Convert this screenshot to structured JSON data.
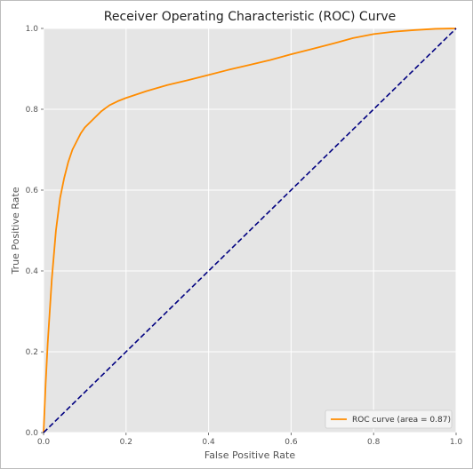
{
  "chart_data": {
    "type": "line",
    "title": "Receiver Operating Characteristic (ROC) Curve",
    "xlabel": "False Positive Rate",
    "ylabel": "True Positive Rate",
    "xlim": [
      0.0,
      1.0
    ],
    "ylim": [
      0.0,
      1.0
    ],
    "x_ticks": [
      "0.0",
      "0.2",
      "0.4",
      "0.6",
      "0.8",
      "1.0"
    ],
    "y_ticks": [
      "0.0",
      "0.2",
      "0.4",
      "0.6",
      "0.8",
      "1.0"
    ],
    "grid": true,
    "legend_position": "lower-right",
    "series": [
      {
        "name": "ROC curve (area = 0.87)",
        "color": "#ff8c00",
        "style": "solid",
        "x": [
          0.0,
          0.005,
          0.01,
          0.02,
          0.03,
          0.04,
          0.05,
          0.06,
          0.07,
          0.08,
          0.09,
          0.1,
          0.12,
          0.14,
          0.16,
          0.18,
          0.2,
          0.25,
          0.3,
          0.35,
          0.4,
          0.45,
          0.5,
          0.55,
          0.6,
          0.65,
          0.7,
          0.75,
          0.8,
          0.85,
          0.9,
          0.95,
          1.0
        ],
        "y": [
          0.0,
          0.12,
          0.22,
          0.38,
          0.5,
          0.58,
          0.63,
          0.67,
          0.7,
          0.72,
          0.74,
          0.755,
          0.775,
          0.795,
          0.81,
          0.82,
          0.828,
          0.845,
          0.86,
          0.872,
          0.885,
          0.898,
          0.91,
          0.922,
          0.936,
          0.949,
          0.962,
          0.976,
          0.986,
          0.992,
          0.996,
          0.999,
          1.0
        ]
      },
      {
        "name": "",
        "color": "#000080",
        "style": "dashed",
        "x": [
          0.0,
          1.0
        ],
        "y": [
          0.0,
          1.0
        ]
      }
    ]
  }
}
